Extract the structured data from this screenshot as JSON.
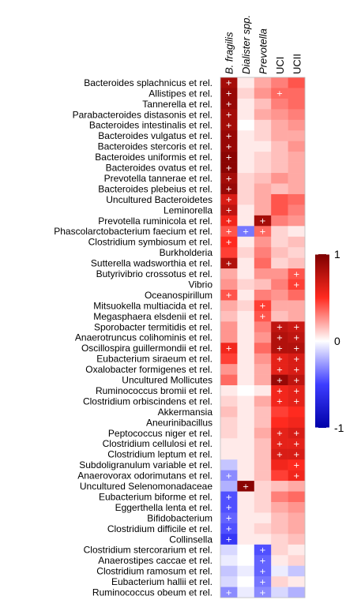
{
  "chart_data": {
    "type": "heatmap",
    "columns": [
      {
        "label": "B. fragilis",
        "italic": true
      },
      {
        "label": "Dialister spp.",
        "italic": true
      },
      {
        "label": "Prevotella",
        "italic": true
      },
      {
        "label": "UCI",
        "italic": false
      },
      {
        "label": "UCII",
        "italic": false
      }
    ],
    "rows": [
      {
        "label": "Bacteroides splachnicus et rel.",
        "values": [
          0.85,
          0.05,
          0.2,
          0.3,
          0.4
        ],
        "sig": [
          1,
          0,
          0,
          0,
          0
        ]
      },
      {
        "label": "Allistipes et rel.",
        "values": [
          0.9,
          0.1,
          0.25,
          0.35,
          0.35
        ],
        "sig": [
          1,
          0,
          0,
          1,
          0
        ]
      },
      {
        "label": "Tannerella et rel.",
        "values": [
          0.9,
          0.05,
          0.15,
          0.3,
          0.35
        ],
        "sig": [
          1,
          0,
          0,
          0,
          0
        ]
      },
      {
        "label": "Parabacteroides distasonis et rel.",
        "values": [
          0.85,
          0.05,
          0.2,
          0.25,
          0.3
        ],
        "sig": [
          1,
          0,
          0,
          0,
          0
        ]
      },
      {
        "label": "Bacteroides intestinalis et rel.",
        "values": [
          0.85,
          0.0,
          0.1,
          0.2,
          0.25
        ],
        "sig": [
          1,
          0,
          0,
          0,
          0
        ]
      },
      {
        "label": "Bacteroides vulgatus et rel.",
        "values": [
          0.9,
          0.05,
          0.1,
          0.2,
          0.2
        ],
        "sig": [
          1,
          0,
          0,
          0,
          0
        ]
      },
      {
        "label": "Bacteroides stercoris et rel.",
        "values": [
          0.9,
          0.05,
          0.05,
          0.15,
          0.25
        ],
        "sig": [
          1,
          0,
          0,
          0,
          0
        ]
      },
      {
        "label": "Bacteroides uniformis et rel.",
        "values": [
          0.95,
          0.05,
          0.1,
          0.15,
          0.2
        ],
        "sig": [
          1,
          0,
          0,
          0,
          0
        ]
      },
      {
        "label": "Bacteroides ovatus et rel.",
        "values": [
          0.95,
          0.05,
          0.1,
          0.15,
          0.2
        ],
        "sig": [
          1,
          0,
          0,
          0,
          0
        ]
      },
      {
        "label": "Prevotella tannerae et rel.",
        "values": [
          0.85,
          0.1,
          0.15,
          0.25,
          0.2
        ],
        "sig": [
          1,
          0,
          0,
          0,
          0
        ]
      },
      {
        "label": "Bacteroides plebeius et rel.",
        "values": [
          0.9,
          0.1,
          0.2,
          0.15,
          0.2
        ],
        "sig": [
          1,
          0,
          0,
          0,
          0
        ]
      },
      {
        "label": "Uncultured Bacteroidetes",
        "values": [
          0.65,
          0.1,
          0.2,
          0.4,
          0.35
        ],
        "sig": [
          1,
          0,
          0,
          0,
          0
        ]
      },
      {
        "label": "Leminorella",
        "values": [
          0.75,
          0.05,
          0.2,
          0.4,
          0.3
        ],
        "sig": [
          1,
          0,
          0,
          0,
          0
        ]
      },
      {
        "label": "Prevotella ruminicola et rel.",
        "values": [
          0.55,
          0.05,
          0.85,
          0.3,
          0.25
        ],
        "sig": [
          1,
          0,
          1,
          0,
          0
        ]
      },
      {
        "label": "Phascolarctobacterium faecium et rel.",
        "values": [
          0.4,
          -0.35,
          0.35,
          0.1,
          0.05
        ],
        "sig": [
          1,
          1,
          1,
          0,
          0
        ]
      },
      {
        "label": "Clostridium symbiosum et rel.",
        "values": [
          0.5,
          0.05,
          0.25,
          0.1,
          0.15
        ],
        "sig": [
          1,
          0,
          0,
          0,
          0
        ]
      },
      {
        "label": "Burkholderia",
        "values": [
          0.45,
          0.1,
          0.3,
          0.15,
          0.1
        ],
        "sig": [
          0,
          0,
          0,
          0,
          0
        ]
      },
      {
        "label": "Sutterella wadsworthia et rel.",
        "values": [
          0.8,
          0.05,
          0.35,
          0.1,
          0.15
        ],
        "sig": [
          1,
          0,
          0,
          0,
          0
        ]
      },
      {
        "label": "Butyrivibrio crossotus et rel.",
        "values": [
          0.2,
          0.05,
          0.25,
          0.25,
          0.4
        ],
        "sig": [
          0,
          0,
          0,
          0,
          1
        ]
      },
      {
        "label": "Vibrio",
        "values": [
          0.25,
          0.1,
          0.15,
          0.3,
          0.45
        ],
        "sig": [
          0,
          0,
          0,
          0,
          1
        ]
      },
      {
        "label": "Oceanospirillum",
        "values": [
          0.4,
          0.05,
          0.3,
          0.25,
          0.35
        ],
        "sig": [
          1,
          0,
          0,
          0,
          0
        ]
      },
      {
        "label": "Mitsuokella multiacida et rel.",
        "values": [
          0.2,
          0.1,
          0.45,
          0.2,
          0.2
        ],
        "sig": [
          0,
          0,
          1,
          0,
          0
        ]
      },
      {
        "label": "Megasphaera elsdenii et rel.",
        "values": [
          0.15,
          0.05,
          0.4,
          0.15,
          0.2
        ],
        "sig": [
          0,
          0,
          1,
          0,
          0
        ]
      },
      {
        "label": "Sporobacter termitidis et rel.",
        "values": [
          0.25,
          0.05,
          0.3,
          0.75,
          0.7
        ],
        "sig": [
          0,
          0,
          0,
          1,
          1
        ]
      },
      {
        "label": "Anaerotruncus colihominis et rel.",
        "values": [
          0.25,
          0.05,
          0.25,
          0.8,
          0.75
        ],
        "sig": [
          0,
          0,
          0,
          1,
          1
        ]
      },
      {
        "label": "Oscillospira guillermondii et rel.",
        "values": [
          0.55,
          0.05,
          0.35,
          0.8,
          0.8
        ],
        "sig": [
          1,
          0,
          0,
          1,
          1
        ]
      },
      {
        "label": "Eubacterium siraeum et rel.",
        "values": [
          0.45,
          0.05,
          0.25,
          0.6,
          0.65
        ],
        "sig": [
          0,
          0,
          0,
          1,
          1
        ]
      },
      {
        "label": "Oxalobacter formigenes et rel.",
        "values": [
          0.25,
          0.05,
          0.2,
          0.6,
          0.65
        ],
        "sig": [
          0,
          0,
          0,
          1,
          1
        ]
      },
      {
        "label": "Uncultured Mollicutes",
        "values": [
          0.35,
          0.05,
          0.2,
          0.9,
          0.75
        ],
        "sig": [
          0,
          0,
          0,
          1,
          1
        ]
      },
      {
        "label": "Ruminococcus bromii et rel.",
        "values": [
          0.05,
          0.0,
          0.05,
          0.55,
          0.6
        ],
        "sig": [
          0,
          0,
          0,
          1,
          1
        ]
      },
      {
        "label": "Clostridium orbiscindens et rel.",
        "values": [
          0.1,
          0.05,
          0.2,
          0.55,
          0.6
        ],
        "sig": [
          0,
          0,
          0,
          1,
          1
        ]
      },
      {
        "label": "Akkermansia",
        "values": [
          0.15,
          0.05,
          0.15,
          0.45,
          0.5
        ],
        "sig": [
          0,
          0,
          0,
          0,
          0
        ]
      },
      {
        "label": "Aneurinibacillus",
        "values": [
          0.1,
          0.05,
          0.15,
          0.5,
          0.55
        ],
        "sig": [
          0,
          0,
          0,
          0,
          0
        ]
      },
      {
        "label": "Peptococcus niger et rel.",
        "values": [
          0.1,
          0.05,
          0.2,
          0.6,
          0.65
        ],
        "sig": [
          0,
          0,
          0,
          1,
          1
        ]
      },
      {
        "label": "Clostridium cellulosi et rel.",
        "values": [
          0.05,
          0.05,
          0.15,
          0.6,
          0.6
        ],
        "sig": [
          0,
          0,
          0,
          1,
          1
        ]
      },
      {
        "label": "Clostridium leptum et rel.",
        "values": [
          0.05,
          0.05,
          0.15,
          0.65,
          0.65
        ],
        "sig": [
          0,
          0,
          0,
          1,
          1
        ]
      },
      {
        "label": "Subdoligranulum variable et rel.",
        "values": [
          -0.15,
          0.05,
          0.15,
          0.55,
          0.5
        ],
        "sig": [
          0,
          0,
          0,
          0,
          1
        ]
      },
      {
        "label": "Anaerovorax odorimutans et rel.",
        "values": [
          -0.3,
          0.05,
          0.15,
          0.45,
          0.55
        ],
        "sig": [
          1,
          0,
          0,
          0,
          1
        ]
      },
      {
        "label": "Uncultured Selenomonadaceae",
        "values": [
          -0.2,
          0.95,
          0.1,
          0.15,
          0.2
        ],
        "sig": [
          0,
          1,
          0,
          0,
          0
        ]
      },
      {
        "label": "Eubacterium biforme et rel.",
        "values": [
          -0.45,
          0.05,
          0.1,
          0.3,
          0.35
        ],
        "sig": [
          1,
          0,
          0,
          0,
          0
        ]
      },
      {
        "label": "Eggerthella lenta et rel.",
        "values": [
          -0.45,
          0.05,
          0.1,
          0.2,
          0.25
        ],
        "sig": [
          1,
          0,
          0,
          0,
          0
        ]
      },
      {
        "label": "Bifidobacterium",
        "values": [
          -0.4,
          0.05,
          0.05,
          0.15,
          0.2
        ],
        "sig": [
          1,
          0,
          0,
          0,
          0
        ]
      },
      {
        "label": "Clostridium difficile et rel.",
        "values": [
          -0.45,
          0.05,
          0.1,
          0.15,
          0.2
        ],
        "sig": [
          1,
          0,
          0,
          0,
          0
        ]
      },
      {
        "label": "Collinsella",
        "values": [
          -0.55,
          0.05,
          0.05,
          0.1,
          0.15
        ],
        "sig": [
          1,
          0,
          0,
          0,
          0
        ]
      },
      {
        "label": "Clostridium stercorarium et rel.",
        "values": [
          -0.1,
          0.0,
          -0.45,
          0.1,
          0.05
        ],
        "sig": [
          0,
          0,
          1,
          0,
          0
        ]
      },
      {
        "label": "Anaerostipes caccae et rel.",
        "values": [
          -0.05,
          0.0,
          -0.4,
          0.05,
          0.1
        ],
        "sig": [
          0,
          0,
          1,
          0,
          0
        ]
      },
      {
        "label": "Clostridium ramosum et rel.",
        "values": [
          -0.15,
          -0.05,
          -0.4,
          -0.05,
          -0.15
        ],
        "sig": [
          0,
          0,
          1,
          0,
          0
        ]
      },
      {
        "label": "Eubacterium hallii et rel.",
        "values": [
          -0.1,
          0.0,
          -0.35,
          0.1,
          0.05
        ],
        "sig": [
          0,
          0,
          1,
          0,
          0
        ]
      },
      {
        "label": "Ruminococcus obeum et rel.",
        "values": [
          -0.3,
          -0.05,
          -0.3,
          -0.1,
          -0.2
        ],
        "sig": [
          1,
          0,
          1,
          0,
          0
        ]
      }
    ],
    "sig_marker": "+",
    "colorbar": {
      "range": [
        -1,
        1
      ],
      "ticks": [
        {
          "value": 1,
          "label": "1"
        },
        {
          "value": 0,
          "label": "0"
        },
        {
          "value": -1,
          "label": "-1"
        }
      ],
      "colors": {
        "strong_neg": "#0000a8",
        "neg": "#3d3dff",
        "zero": "#ffffff",
        "pos": "#ff2a1f",
        "strong_pos": "#7d0000"
      }
    }
  }
}
